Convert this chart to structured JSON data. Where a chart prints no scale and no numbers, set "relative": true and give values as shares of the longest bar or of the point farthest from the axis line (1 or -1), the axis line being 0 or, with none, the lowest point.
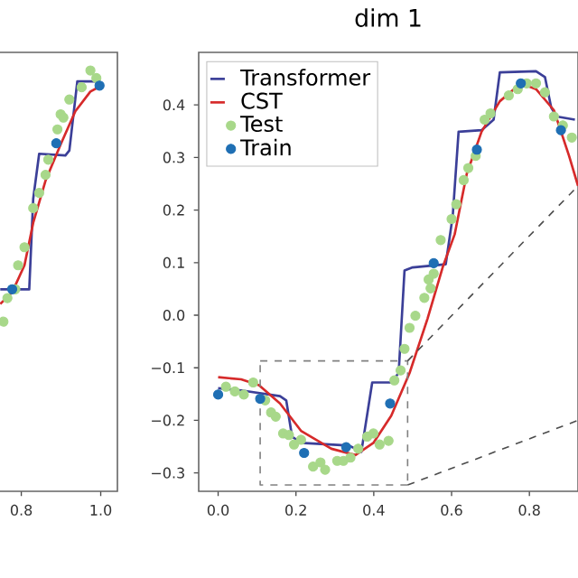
{
  "chart_data": [
    {
      "type": "line",
      "relative": true,
      "tick_labels": "x",
      "xlim": [
        0.74,
        1.042
      ],
      "xticks": [
        {
          "value": 0.8,
          "label": "0.8"
        },
        {
          "value": 1.0,
          "label": "1.0"
        }
      ],
      "legend": false,
      "grid": false,
      "series": [
        {
          "type": "line",
          "color": "#3b3f98",
          "x": [
            0.747,
            0.82,
            0.83,
            0.845,
            0.911,
            0.921,
            0.941,
            0.989,
            1.002
          ],
          "values": [
            0.48,
            0.48,
            0.695,
            0.802,
            0.798,
            0.81,
            0.974,
            0.974,
            0.967
          ]
        },
        {
          "type": "line",
          "color": "#d62a2a",
          "x": [
            0.747,
            0.777,
            0.808,
            0.83,
            0.861,
            0.899,
            0.936,
            0.974,
            1.002
          ],
          "values": [
            0.445,
            0.473,
            0.537,
            0.638,
            0.738,
            0.824,
            0.903,
            0.95,
            0.964
          ]
        },
        {
          "type": "scatter",
          "marker": "circle",
          "color": "#a8d88a",
          "x": [
            0.755,
            0.765,
            0.785,
            0.792,
            0.808,
            0.83,
            0.845,
            0.861,
            0.868,
            0.891,
            0.899,
            0.906,
            0.921,
            0.952,
            0.974,
            0.989
          ],
          "values": [
            0.403,
            0.459,
            0.48,
            0.537,
            0.58,
            0.673,
            0.709,
            0.752,
            0.788,
            0.86,
            0.896,
            0.888,
            0.931,
            0.96,
            1.0,
            0.982
          ]
        },
        {
          "type": "scatter",
          "marker": "circle",
          "color": "#1f6fb4",
          "x": [
            0.777,
            0.888,
            0.997
          ],
          "values": [
            0.48,
            0.827,
            0.964
          ]
        }
      ]
    },
    {
      "type": "line",
      "title": "dim 1",
      "xlim": [
        -0.05,
        0.925
      ],
      "ylim": [
        -0.335,
        0.5
      ],
      "xticks": [
        {
          "value": 0,
          "label": "0.0"
        },
        {
          "value": 0.2,
          "label": "0.2"
        },
        {
          "value": 0.4,
          "label": "0.4"
        },
        {
          "value": 0.6,
          "label": "0.6"
        },
        {
          "value": 0.8,
          "label": "0.8"
        }
      ],
      "yticks": [
        {
          "value": -0.3,
          "label": "−0.3"
        },
        {
          "value": -0.2,
          "label": "−0.2"
        },
        {
          "value": -0.1,
          "label": "−0.1"
        },
        {
          "value": 0,
          "label": "0.0"
        },
        {
          "value": 0.1,
          "label": "0.1"
        },
        {
          "value": 0.2,
          "label": "0.2"
        },
        {
          "value": 0.3,
          "label": "0.3"
        },
        {
          "value": 0.4,
          "label": "0.4"
        }
      ],
      "legend": "top left",
      "grid": false,
      "series": [
        {
          "name": "Transformer",
          "type": "line",
          "color": "#3b3f98",
          "x": [
            0,
            0.059,
            0.159,
            0.175,
            0.19,
            0.213,
            0.337,
            0.368,
            0.396,
            0.445,
            0.464,
            0.479,
            0.5,
            0.585,
            0.603,
            0.618,
            0.677,
            0.708,
            0.724,
            0.817,
            0.84,
            0.856,
            0.87,
            0.917
          ],
          "values": [
            -0.139,
            -0.143,
            -0.154,
            -0.162,
            -0.231,
            -0.243,
            -0.248,
            -0.26,
            -0.128,
            -0.128,
            -0.11,
            0.085,
            0.091,
            0.097,
            0.189,
            0.349,
            0.352,
            0.372,
            0.462,
            0.464,
            0.453,
            0.395,
            0.378,
            0.372
          ]
        },
        {
          "name": "CST",
          "type": "line",
          "color": "#d62a2a",
          "x": [
            0,
            0.059,
            0.105,
            0.159,
            0.213,
            0.291,
            0.353,
            0.399,
            0.445,
            0.492,
            0.538,
            0.577,
            0.608,
            0.639,
            0.677,
            0.724,
            0.778,
            0.817,
            0.863,
            0.902,
            0.925
          ],
          "values": [
            -0.118,
            -0.122,
            -0.133,
            -0.168,
            -0.22,
            -0.254,
            -0.266,
            -0.243,
            -0.191,
            -0.11,
            -0.007,
            0.091,
            0.154,
            0.269,
            0.349,
            0.407,
            0.441,
            0.43,
            0.39,
            0.303,
            0.246
          ]
        },
        {
          "name": "Test",
          "type": "scatter",
          "marker": "circle",
          "color": "#a8d88a",
          "x": [
            0.02,
            0.043,
            0.066,
            0.09,
            0.121,
            0.136,
            0.148,
            0.167,
            0.182,
            0.195,
            0.213,
            0.244,
            0.263,
            0.275,
            0.306,
            0.322,
            0.34,
            0.36,
            0.383,
            0.399,
            0.415,
            0.438,
            0.453,
            0.469,
            0.479,
            0.492,
            0.507,
            0.53,
            0.541,
            0.546,
            0.554,
            0.572,
            0.6,
            0.612,
            0.631,
            0.643,
            0.662,
            0.685,
            0.7,
            0.747,
            0.77,
            0.793,
            0.817,
            0.84,
            0.863,
            0.886,
            0.909
          ],
          "values": [
            -0.136,
            -0.145,
            -0.151,
            -0.128,
            -0.162,
            -0.185,
            -0.193,
            -0.225,
            -0.228,
            -0.246,
            -0.237,
            -0.288,
            -0.28,
            -0.294,
            -0.277,
            -0.277,
            -0.271,
            -0.254,
            -0.231,
            -0.225,
            -0.246,
            -0.239,
            -0.124,
            -0.105,
            -0.064,
            -0.024,
            -0.001,
            0.033,
            0.068,
            0.051,
            0.079,
            0.143,
            0.183,
            0.211,
            0.257,
            0.28,
            0.303,
            0.372,
            0.384,
            0.418,
            0.43,
            0.441,
            0.441,
            0.424,
            0.378,
            0.361,
            0.338
          ]
        },
        {
          "name": "Train",
          "type": "scatter",
          "marker": "circle",
          "color": "#1f6fb4",
          "x": [
            0,
            0.108,
            0.221,
            0.329,
            0.442,
            0.554,
            0.665,
            0.778,
            0.881
          ],
          "values": [
            -0.151,
            -0.159,
            -0.262,
            -0.251,
            -0.168,
            0.099,
            0.315,
            0.441,
            0.352
          ]
        },
        {
          "type": "line",
          "line_style": "dashed",
          "color": "#808080",
          "x": [
            0.108,
            0.487,
            0.487
          ],
          "values": [
            -0.087,
            -0.087,
            -0.323
          ]
        },
        {
          "type": "line",
          "line_style": "dashed",
          "color": "#808080",
          "x": [
            0.487,
            0.108,
            0.108
          ],
          "values": [
            -0.323,
            -0.323,
            -0.087
          ]
        },
        {
          "type": "line",
          "line_style": "dashed",
          "color": "#4c4c4c",
          "x": [
            0.487,
            0.925
          ],
          "values": [
            -0.087,
            0.246
          ]
        },
        {
          "type": "line",
          "line_style": "dashed",
          "color": "#4c4c4c",
          "x": [
            0.487,
            0.925
          ],
          "values": [
            -0.323,
            -0.2
          ]
        }
      ]
    }
  ]
}
